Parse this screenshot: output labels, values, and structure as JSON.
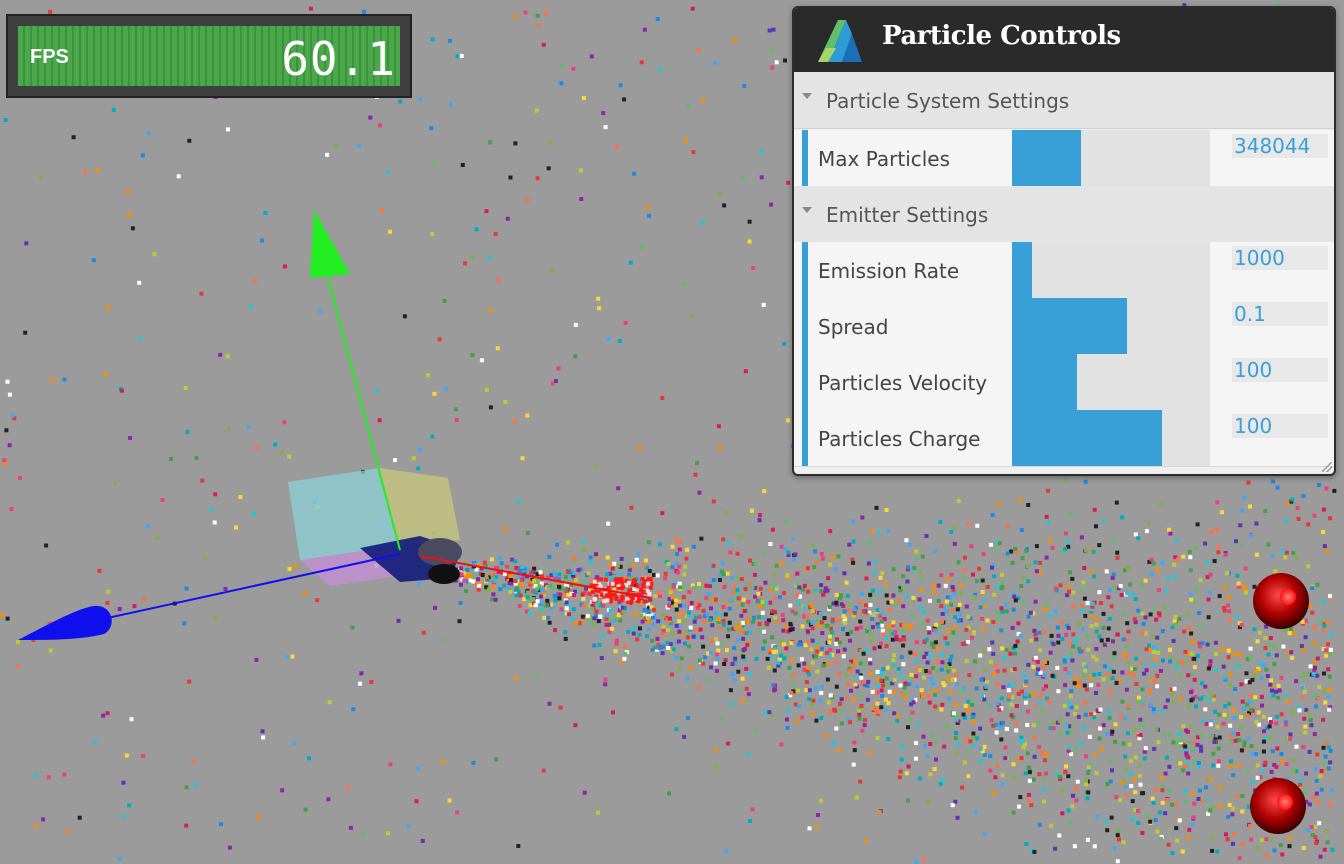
{
  "fps": {
    "label": "FPS",
    "value": "60.1",
    "bar_color": "#4aa84a"
  },
  "panel": {
    "title": "Particle Controls",
    "logo_icon": "autodesk-logo-icon",
    "sections": [
      {
        "title": "Particle System Settings"
      },
      {
        "title": "Emitter Settings"
      }
    ],
    "controls": [
      {
        "label": "Max Particles",
        "value": "348044",
        "fill_fraction": 0.35
      },
      {
        "label": "Emission Rate",
        "value": "1000",
        "fill_fraction": 0.1
      },
      {
        "label": "Spread",
        "value": "0.1",
        "fill_fraction": 0.58
      },
      {
        "label": "Particles Velocity",
        "value": "100",
        "fill_fraction": 0.33
      },
      {
        "label": "Particles Charge",
        "value": "100",
        "fill_fraction": 0.76
      }
    ],
    "accent_color": "#39a0d7"
  },
  "scene": {
    "background": "#9b9b9b",
    "y_axis_color": "#22ee22",
    "z_axis_color": "#1010ee",
    "x_axis_color": "#ee1111",
    "emitter_icon": "emitter-gizmo-icon",
    "charge_sphere_icon": "red-sphere-icon"
  }
}
